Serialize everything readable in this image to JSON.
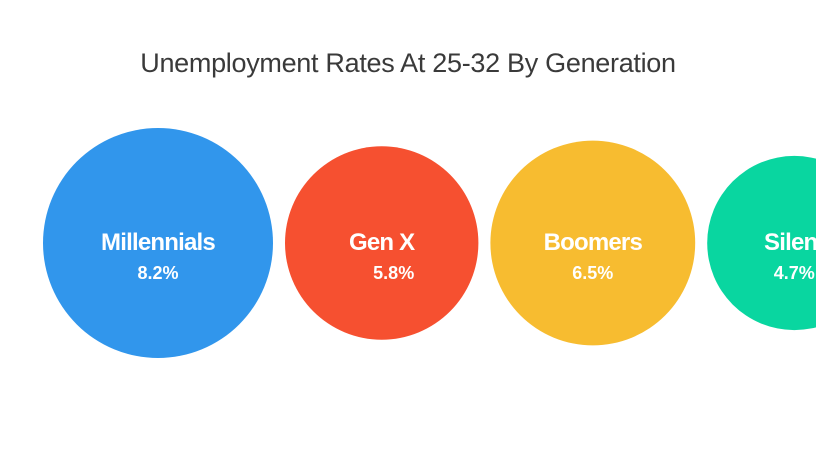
{
  "chart_data": {
    "type": "bubble",
    "title": "Unemployment Rates At 25-32 By Generation",
    "categories": [
      "Millennials",
      "Gen X",
      "Boomers",
      "Silent"
    ],
    "values": [
      8.2,
      5.8,
      6.5,
      4.7
    ],
    "value_labels": [
      "8.2%",
      "5.8%",
      "6.5%",
      "4.7%"
    ],
    "unit": "%",
    "colors": [
      "#3196ec",
      "#f65030",
      "#f7bc30",
      "#09d6a0"
    ],
    "legend": "none",
    "grid": false
  }
}
